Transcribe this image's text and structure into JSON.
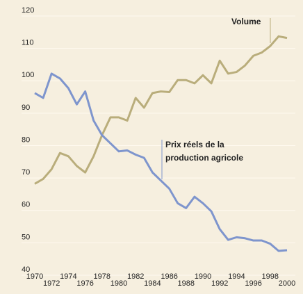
{
  "chart_data": {
    "type": "line",
    "x": [
      1970,
      1971,
      1972,
      1973,
      1974,
      1975,
      1976,
      1977,
      1978,
      1979,
      1980,
      1981,
      1982,
      1983,
      1984,
      1985,
      1986,
      1987,
      1988,
      1989,
      1990,
      1991,
      1992,
      1993,
      1994,
      1995,
      1996,
      1997,
      1998,
      1999,
      2000
    ],
    "series": [
      {
        "name": "Volume",
        "color": "#b9ad7b",
        "values": [
          66.5,
          68,
          71,
          76,
          75,
          72,
          70,
          75,
          81.5,
          87,
          87,
          86,
          93,
          90,
          94.5,
          95,
          94.8,
          98.5,
          98.5,
          97.5,
          100,
          97.5,
          104.5,
          100.5,
          101,
          103,
          106,
          107,
          109,
          112,
          111.5
        ]
      },
      {
        "name": "Prix réels de la production agricole",
        "color": "#7e95cd",
        "values": [
          94.5,
          93,
          100.5,
          99,
          96,
          91,
          95,
          86,
          81.5,
          79,
          76.5,
          76.8,
          75.5,
          74.5,
          70,
          67.5,
          65,
          60.5,
          59,
          62.5,
          60.5,
          58,
          52.5,
          49.2,
          50,
          49.7,
          49,
          49,
          48,
          45.8,
          46
        ]
      }
    ],
    "xlim": [
      1970,
      2000
    ],
    "xticks": [
      1970,
      1972,
      1974,
      1976,
      1978,
      1980,
      1982,
      1984,
      1986,
      1988,
      1990,
      1992,
      1994,
      1996,
      1998,
      2000
    ],
    "ylim": [
      40,
      120
    ],
    "yticks": [
      40,
      50,
      60,
      70,
      80,
      90,
      100,
      110,
      120
    ],
    "grid": true
  }
}
